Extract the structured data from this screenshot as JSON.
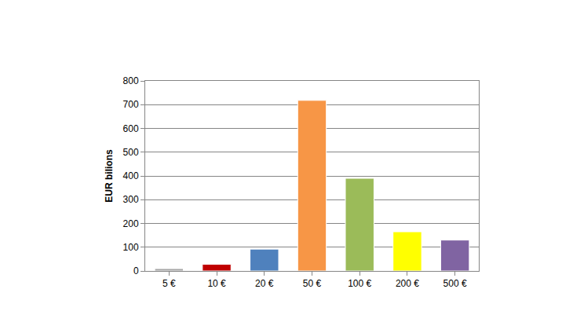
{
  "chart_data": {
    "type": "bar",
    "y_label": "EUR bilions",
    "categories": [
      "5 €",
      "10 €",
      "20 €",
      "50 €",
      "100 €",
      "200 €",
      "500 €"
    ],
    "values": [
      10,
      28,
      92,
      718,
      390,
      165,
      130
    ],
    "colors": [
      "#a6a6a6",
      "#c00000",
      "#4f81bd",
      "#f79646",
      "#9bbb59",
      "#ffff00",
      "#8064a2"
    ],
    "ylim": [
      0,
      800
    ],
    "yticks": [
      0,
      100,
      200,
      300,
      400,
      500,
      600,
      700,
      800
    ],
    "grid": true
  }
}
